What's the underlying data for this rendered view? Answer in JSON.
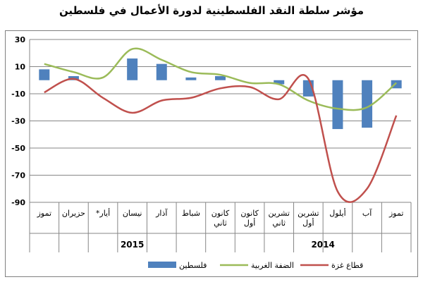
{
  "chart_data": {
    "type": "bar",
    "title": "مؤشر سلطة النقد الفلسطينية لدورة الأعمال في فلسطين",
    "categories": [
      "تموز",
      "آب",
      "أيلول",
      "تشرين أول",
      "تشرين ثاني",
      "كانون أول",
      "كانون ثاني",
      "شباط",
      "آذار",
      "نيسان",
      "أيار*",
      "حزيران",
      "تموز"
    ],
    "years": [
      {
        "label": "2014",
        "categories": [
          "تموز",
          "آب",
          "أيلول",
          "تشرين أول",
          "تشرين ثاني",
          "كانون أول"
        ]
      },
      {
        "label": "2015",
        "categories": [
          "كانون ثاني",
          "شباط",
          "آذار",
          "نيسان",
          "أيار*",
          "حزيران",
          "تموز"
        ]
      }
    ],
    "x_direction": "right-to-left",
    "ylim": [
      -90,
      30
    ],
    "yticks": [
      -90,
      -70,
      -50,
      -30,
      -10,
      10,
      30
    ],
    "grid": "horizontal",
    "legend_position": "bottom",
    "series": [
      {
        "name": "فلسطين",
        "type": "bar",
        "color": "#4f81bd",
        "values": [
          -6,
          -35,
          -36,
          -12,
          -3,
          0,
          3,
          2,
          12,
          16,
          0,
          3,
          8
        ]
      },
      {
        "name": "الضفة الغربية",
        "type": "line",
        "color": "#9bbb59",
        "values": [
          -2,
          -20,
          -21,
          -15,
          -3,
          -2,
          4,
          6,
          15,
          23,
          2,
          6,
          12
        ]
      },
      {
        "name": "قطاع غزة",
        "type": "line",
        "color": "#c0504d",
        "values": [
          -26,
          -80,
          -82,
          1,
          -14,
          -5,
          -6,
          -13,
          -15,
          -24,
          -13,
          1,
          -9
        ]
      }
    ]
  }
}
